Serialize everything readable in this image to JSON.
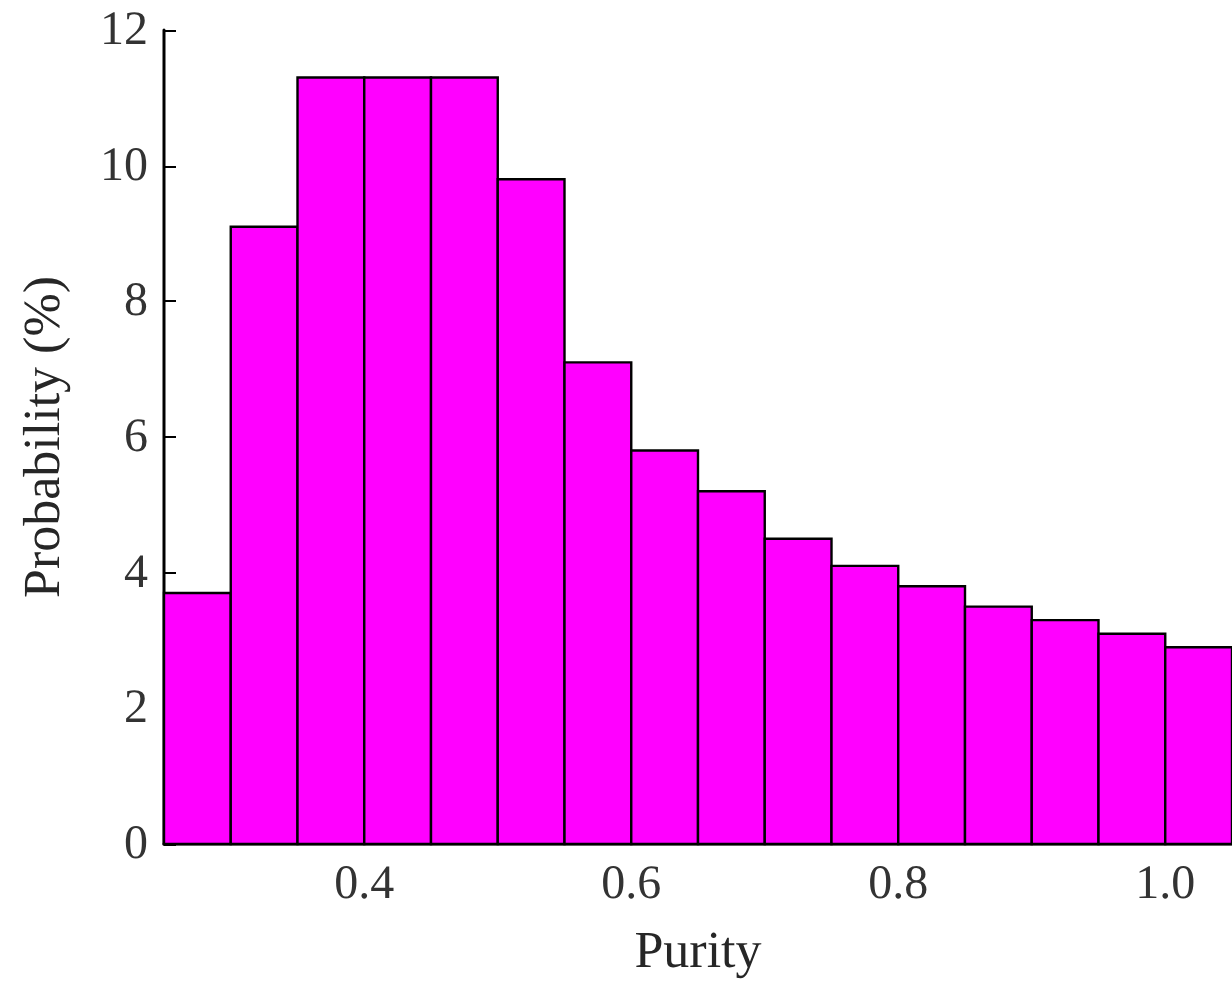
{
  "chart_data": {
    "type": "histogram",
    "xlabel": "Purity",
    "ylabel": "Probability (%)",
    "bins": [
      0.25,
      0.3,
      0.35,
      0.4,
      0.45,
      0.5,
      0.55,
      0.6,
      0.65,
      0.7,
      0.75,
      0.8,
      0.85,
      0.9,
      0.95,
      1.0,
      1.05
    ],
    "values": [
      3.7,
      9.1,
      11.3,
      11.3,
      11.3,
      9.8,
      7.1,
      5.8,
      5.2,
      4.5,
      4.1,
      3.8,
      3.5,
      3.3,
      3.1,
      2.9
    ],
    "color": "#ff00ff",
    "xlim": [
      0.25,
      1.05
    ],
    "xticks": [
      0.4,
      0.6,
      0.8,
      {
        "value": 1.0,
        "label": "1.0"
      }
    ],
    "ylim": [
      0,
      12
    ],
    "yticks": [
      0,
      2,
      4,
      6,
      8,
      10,
      12
    ],
    "grid": false
  }
}
